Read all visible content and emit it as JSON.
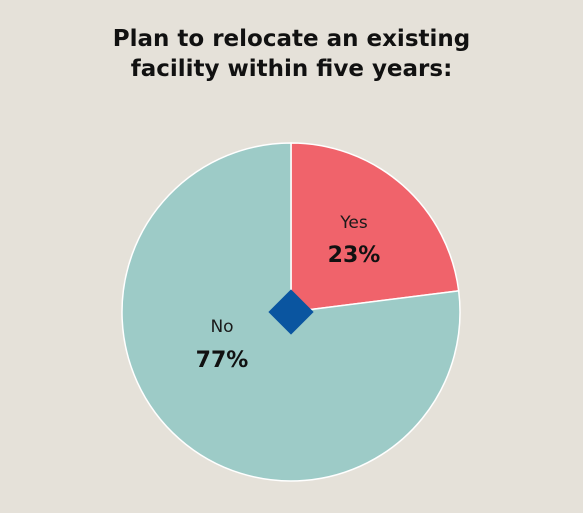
{
  "chart_data": {
    "type": "pie",
    "title_lines": [
      "Plan to relocate an existing",
      "facility within five years:"
    ],
    "slices": [
      {
        "label": "Yes",
        "value": 23,
        "value_label": "23%",
        "color": "#f0636b"
      },
      {
        "label": "No",
        "value": 77,
        "value_label": "77%",
        "color": "#9dcbc7"
      }
    ],
    "center_marker_color": "#0a55a0"
  }
}
